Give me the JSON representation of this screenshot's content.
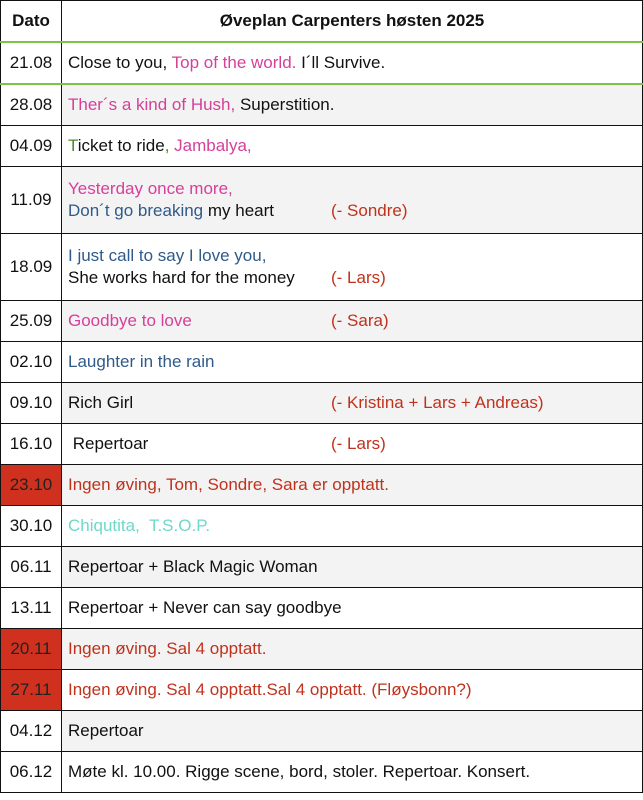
{
  "header": {
    "date": "Dato",
    "title": "Øveplan Carpenters høsten 2025"
  },
  "rows": [
    {
      "date": "21.08",
      "highlight": false,
      "lines": [
        {
          "segments": [
            {
              "text": "Close to you, ",
              "color": "#111111"
            },
            {
              "text": "Top of the world.",
              "color": "#d63f9a"
            },
            {
              "text": " I´ll Survive.",
              "color": "#111111"
            }
          ]
        }
      ]
    },
    {
      "date": "28.08",
      "highlight": false,
      "lines": [
        {
          "segments": [
            {
              "text": "Ther´s a kind of Hush,",
              "color": "#d63f9a"
            },
            {
              "text": " Superstition.",
              "color": "#111111"
            }
          ]
        }
      ]
    },
    {
      "date": "04.09",
      "highlight": false,
      "lines": [
        {
          "segments": [
            {
              "text": "T",
              "color": "#4a8a2a"
            },
            {
              "text": "icket to ride",
              "color": "#111111"
            },
            {
              "text": ", ",
              "color": "#4a8a2a"
            },
            {
              "text": "Jambalya,",
              "color": "#d63f9a"
            }
          ]
        }
      ]
    },
    {
      "date": "11.09",
      "highlight": false,
      "lines": [
        {
          "segments": [
            {
              "text": "Yesterday once more,",
              "color": "#d63f9a"
            }
          ]
        },
        {
          "segments": [
            {
              "text": "Don´t go breaking",
              "color": "#2f5a8a"
            },
            {
              "text": " my heart",
              "color": "#111111"
            }
          ],
          "note": {
            "text": "(- Sondre)",
            "color": "#c0321c"
          }
        }
      ]
    },
    {
      "date": "18.09",
      "highlight": false,
      "lines": [
        {
          "segments": [
            {
              "text": "I just call to say I love you,",
              "color": "#2f5a8a"
            }
          ]
        },
        {
          "segments": [
            {
              "text": "She works hard for the money",
              "color": "#111111"
            }
          ],
          "note": {
            "text": "(- Lars)",
            "color": "#c0321c"
          }
        }
      ]
    },
    {
      "date": "25.09",
      "highlight": false,
      "lines": [
        {
          "segments": [
            {
              "text": "Goodbye to love",
              "color": "#d63f9a"
            }
          ],
          "note": {
            "text": "(- Sara)",
            "color": "#c0321c"
          }
        }
      ]
    },
    {
      "date": "02.10",
      "highlight": false,
      "lines": [
        {
          "segments": [
            {
              "text": "Laughter in the rain",
              "color": "#2f5a8a"
            }
          ]
        }
      ]
    },
    {
      "date": "09.10",
      "highlight": false,
      "lines": [
        {
          "segments": [
            {
              "text": "Rich Girl",
              "color": "#111111"
            }
          ],
          "note": {
            "text": "(- Kristina + Lars + Andreas)",
            "color": "#c0321c"
          }
        }
      ]
    },
    {
      "date": "16.10",
      "highlight": false,
      "lines": [
        {
          "segments": [
            {
              "text": " Repertoar",
              "color": "#111111"
            }
          ],
          "note": {
            "text": "(- Lars)",
            "color": "#c0321c"
          }
        }
      ]
    },
    {
      "date": "23.10",
      "highlight": true,
      "lines": [
        {
          "segments": [
            {
              "text": "Ingen øving, Tom, Sondre, Sara er opptatt.",
              "color": "#c0321c"
            }
          ]
        }
      ]
    },
    {
      "date": "30.10",
      "highlight": false,
      "lines": [
        {
          "segments": [
            {
              "text": "Chiqutita,  T.S.O.P.",
              "color": "#6fd8c8"
            }
          ]
        }
      ]
    },
    {
      "date": "06.11",
      "highlight": false,
      "lines": [
        {
          "segments": [
            {
              "text": "Repertoar + Black Magic Woman",
              "color": "#111111"
            }
          ]
        }
      ]
    },
    {
      "date": "13.11",
      "highlight": false,
      "lines": [
        {
          "segments": [
            {
              "text": "Repertoar + Never can say goodbye",
              "color": "#111111"
            }
          ]
        }
      ]
    },
    {
      "date": "20.11",
      "highlight": true,
      "lines": [
        {
          "segments": [
            {
              "text": "Ingen øving. Sal 4 opptatt.",
              "color": "#c0321c"
            }
          ]
        }
      ]
    },
    {
      "date": "27.11",
      "highlight": true,
      "lines": [
        {
          "segments": [
            {
              "text": "Ingen øving. Sal 4 opptatt.Sal 4 opptatt. (Fløysbonn?)",
              "color": "#c0321c"
            }
          ]
        }
      ]
    },
    {
      "date": "04.12",
      "highlight": false,
      "lines": [
        {
          "segments": [
            {
              "text": "Repertoar",
              "color": "#111111"
            }
          ]
        }
      ]
    },
    {
      "date": "06.12",
      "highlight": false,
      "lines": [
        {
          "segments": [
            {
              "text": "Møte kl. 10.00. Rigge scene, bord, stoler. Repertoar. Konsert.",
              "color": "#111111"
            }
          ]
        }
      ]
    }
  ]
}
